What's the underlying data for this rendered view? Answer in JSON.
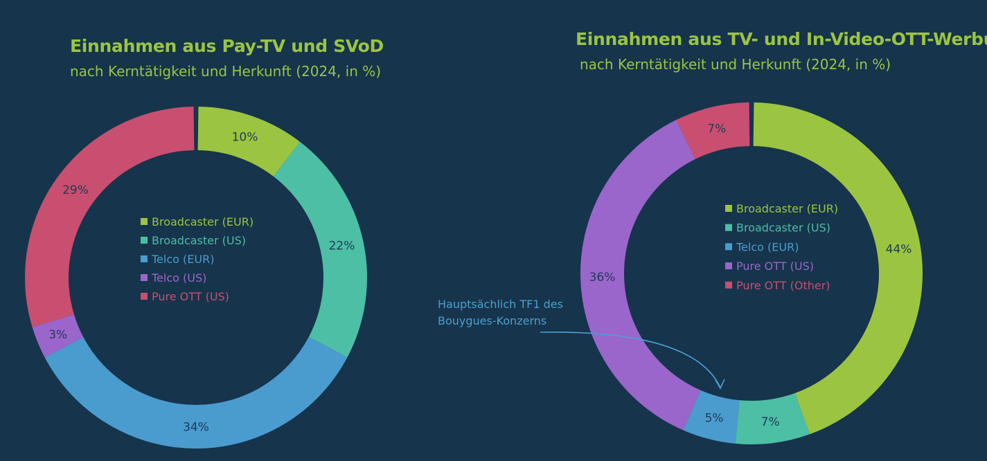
{
  "colors": {
    "background": "#16344c",
    "title": "#9bc541",
    "annotation": "#4aa0d3"
  },
  "chart_data": [
    {
      "type": "pie",
      "title": "Einnahmen aus Pay-TV und SVoD",
      "subtitle": "nach Kerntätigkeit und Herkunft (2024, in %)",
      "categories": [
        "Broadcaster (EUR)",
        "Broadcaster (US)",
        "Telco (EUR)",
        "Telco (US)",
        "Pure OTT (US)"
      ],
      "values": [
        10,
        22,
        34,
        3,
        29
      ],
      "labels": [
        "10%",
        "22%",
        "34%",
        "3%",
        "29%"
      ],
      "colors": [
        "#9bc541",
        "#4dbfa5",
        "#4a9ccf",
        "#9a66cc",
        "#c94f70"
      ],
      "legend": "center",
      "donut": true
    },
    {
      "type": "pie",
      "title": "Einnahmen aus TV- und In-Video-OTT-Werbung",
      "subtitle": "nach Kerntätigkeit und Herkunft (2024, in %)",
      "categories": [
        "Broadcaster (EUR)",
        "Broadcaster (US)",
        "Telco (EUR)",
        "Pure OTT (US)",
        "Pure OTT (Other)"
      ],
      "values": [
        44,
        7,
        5,
        36,
        7
      ],
      "labels": [
        "44%",
        "7%",
        "5%",
        "36%",
        "7%"
      ],
      "colors": [
        "#9bc541",
        "#4dbfa5",
        "#4a9ccf",
        "#9a66cc",
        "#c94f70"
      ],
      "legend": "center",
      "donut": true,
      "annotation": {
        "text_lines": [
          "Hauptsächlich TF1 des",
          "Bouygues-Konzerns"
        ],
        "target": "Telco (EUR)"
      }
    }
  ]
}
